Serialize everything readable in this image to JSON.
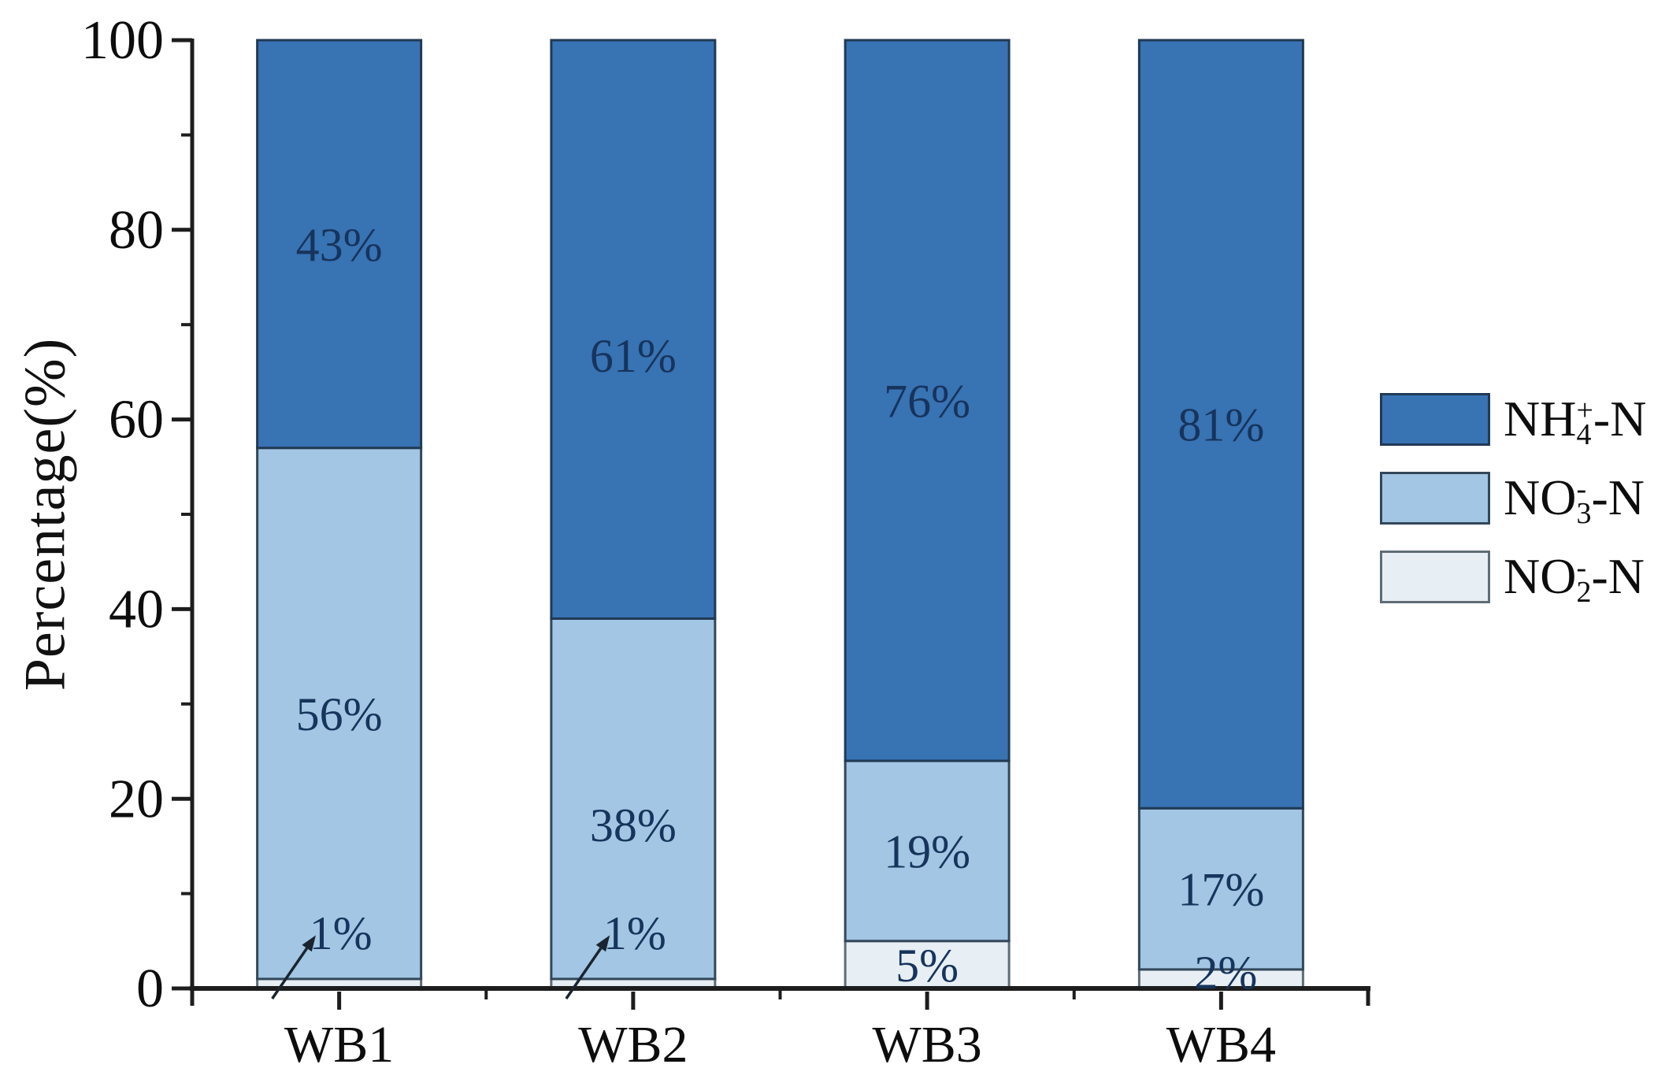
{
  "chart_data": {
    "type": "bar",
    "stacked": true,
    "title": "",
    "xlabel": "",
    "ylabel": "Percentage(%)",
    "ylim": [
      0,
      100
    ],
    "yticks": [
      0,
      20,
      40,
      60,
      80,
      100
    ],
    "ytick_minor": [
      10,
      30,
      50,
      70,
      90
    ],
    "grid": false,
    "legend_position": "right",
    "categories": [
      "WB1",
      "WB2",
      "WB3",
      "WB4"
    ],
    "series": [
      {
        "name": "NH4+-N",
        "formula": {
          "base": "NH",
          "sup": "+",
          "sub": "4",
          "suffix": "-N"
        },
        "color": "#3873B4",
        "border_color": "#203A54",
        "values": [
          43,
          61,
          76,
          81
        ],
        "value_labels": [
          "43%",
          "61%",
          "76%",
          "81%"
        ]
      },
      {
        "name": "NO3--N",
        "formula": {
          "base": "NO",
          "sup": "-",
          "sub": "3",
          "suffix": "-N"
        },
        "color": "#A2C6E3",
        "border_color": "#33475A",
        "values": [
          56,
          38,
          19,
          17
        ],
        "value_labels": [
          "56%",
          "38%",
          "19%",
          "17%"
        ]
      },
      {
        "name": "NO2--N",
        "formula": {
          "base": "NO",
          "sup": "-",
          "sub": "2",
          "suffix": "-N"
        },
        "color": "#E7EFF4",
        "border_color": "#5F6C76",
        "values": [
          1,
          1,
          5,
          2
        ],
        "value_labels": [
          "1%",
          "1%",
          "5%",
          "2%"
        ],
        "callout_labels": [
          true,
          true,
          false,
          false
        ]
      }
    ],
    "label_color": "#17345C",
    "axis_color": "#1d1d1d",
    "arrow_color": "#1a2430"
  }
}
